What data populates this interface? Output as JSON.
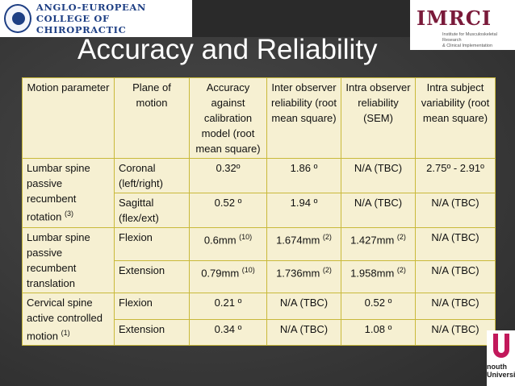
{
  "header": {
    "college_line1": "ANGLO-EUROPEAN",
    "college_line2": "COLLEGE OF CHIROPRACTIC",
    "imrci": "IMRCI",
    "imrci_sub1": "Institute for Musculoskeletal Research",
    "imrci_sub2": "& Clinical Implementation"
  },
  "title": "Accuracy and Reliability",
  "table": {
    "headers": [
      "Motion parameter",
      "Plane of motion",
      "Accuracy against calibration model (root mean square)",
      "Inter observer reliability (root mean square)",
      "Intra observer reliability (SEM)",
      "Intra subject variability (root mean square)"
    ],
    "groups": [
      {
        "param": "Lumbar spine passive recumbent rotation",
        "sup": "(3)",
        "rows": [
          {
            "plane": "Coronal (left/right)",
            "accuracy": "0.32º",
            "acc_sup": "",
            "inter": "1.86 º",
            "inter_sup": "",
            "intra": "N/A (TBC)",
            "intra_sup": "",
            "subject": "2.75º - 2.91º"
          },
          {
            "plane": "Sagittal (flex/ext)",
            "accuracy": "0.52 º",
            "acc_sup": "",
            "inter": "1.94 º",
            "inter_sup": "",
            "intra": "N/A (TBC)",
            "intra_sup": "",
            "subject": "N/A (TBC)"
          }
        ]
      },
      {
        "param": "Lumbar spine passive recumbent translation",
        "sup": "",
        "rows": [
          {
            "plane": "Flexion",
            "accuracy": "0.6mm",
            "acc_sup": "(10)",
            "inter": "1.674mm",
            "inter_sup": "(2)",
            "intra": "1.427mm",
            "intra_sup": "(2)",
            "subject": "N/A (TBC)"
          },
          {
            "plane": "Extension",
            "accuracy": "0.79mm",
            "acc_sup": "(10)",
            "inter": "1.736mm",
            "inter_sup": "(2)",
            "intra": "1.958mm",
            "intra_sup": "(2)",
            "subject": "N/A (TBC)"
          }
        ]
      },
      {
        "param": "Cervical spine active controlled motion",
        "sup": "(1)",
        "rows": [
          {
            "plane": "Flexion",
            "accuracy": "0.21 º",
            "acc_sup": "",
            "inter": "N/A (TBC)",
            "inter_sup": "",
            "intra": "0.52 º",
            "intra_sup": "",
            "subject": "N/A (TBC)"
          },
          {
            "plane": "Extension",
            "accuracy": "0.34 º",
            "acc_sup": "",
            "inter": "N/A (TBC)",
            "inter_sup": "",
            "intra": "1.08 º",
            "intra_sup": "",
            "subject": "N/A (TBC)"
          }
        ]
      }
    ]
  },
  "footer_logo": {
    "line1": "nouth",
    "line2": "University"
  }
}
